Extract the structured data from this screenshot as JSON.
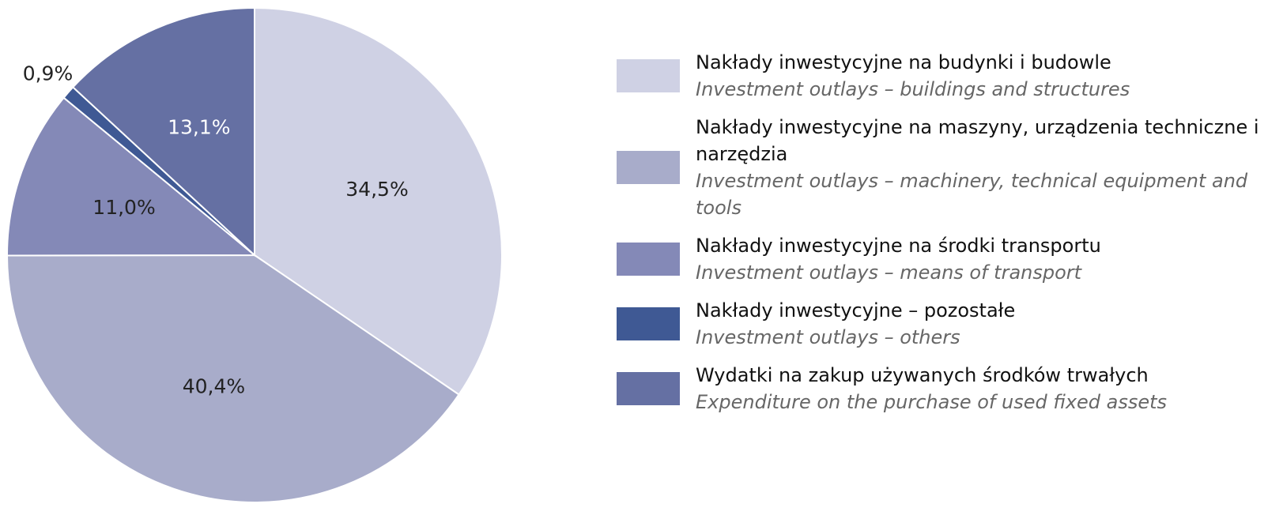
{
  "chart_data": {
    "type": "pie",
    "categories": [
      "Nakłady inwestycyjne na budynki i budowle",
      "Nakłady inwestycyjne na maszyny, urządzenia techniczne i narzędzia",
      "Nakłady inwestycyjne na środki transportu",
      "Nakłady inwestycyjne – pozostałe",
      "Wydatki na zakup używanych środków trwałych"
    ],
    "category_translations": [
      "Investment outlays – buildings and structures",
      "Investment outlays – machinery, technical equipment and tools",
      "Investment outlays – means of transport",
      "Investment outlays – others",
      "Expenditure on the purchase of used fixed assets"
    ],
    "values": [
      34.5,
      40.4,
      11.0,
      0.9,
      13.1
    ],
    "value_labels": [
      "34,5%",
      "40,4%",
      "11,0%",
      "0,9%",
      "13,1%"
    ],
    "colors": [
      "#cfd1e4",
      "#a8acca",
      "#8489b7",
      "#3f5994",
      "#6570a3"
    ],
    "legend": "right"
  }
}
